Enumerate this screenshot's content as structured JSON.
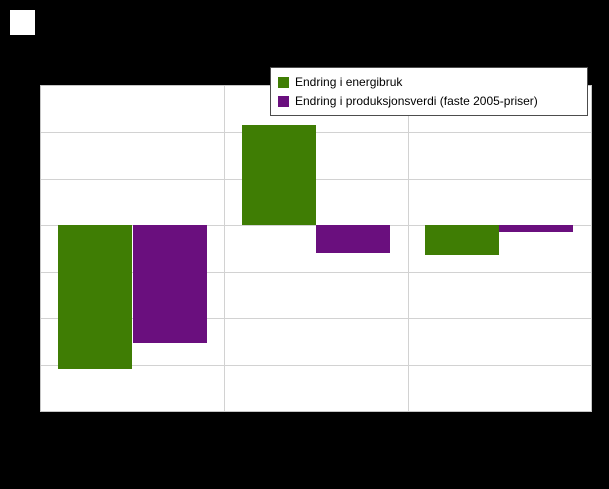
{
  "page": {
    "background_color": "#000000"
  },
  "legend": {
    "items": [
      {
        "label": "Endring i energibruk",
        "color": "#3f7d04"
      },
      {
        "label": "Endring i produksjonsverdi (faste 2005-priser)",
        "color": "#6a0f7e"
      }
    ]
  },
  "chart_data": {
    "type": "bar",
    "title": "",
    "xlabel": "",
    "ylabel": "",
    "categories": [
      "",
      "",
      ""
    ],
    "series": [
      {
        "name": "Endring i energibruk",
        "color": "#3f7d04",
        "values": [
          -6.2,
          4.3,
          -1.3
        ]
      },
      {
        "name": "Endring i produksjonsverdi (faste 2005-priser)",
        "color": "#6a0f7e",
        "values": [
          -5.1,
          -1.2,
          -0.3
        ]
      }
    ],
    "ylim": [
      -8,
      6
    ],
    "gridline_interval": 2,
    "grid": true,
    "axis_tick_labels_visible": false,
    "legend_position": "top-right",
    "plot_background": "#ffffff",
    "gridline_color": "#d2d2d2"
  }
}
